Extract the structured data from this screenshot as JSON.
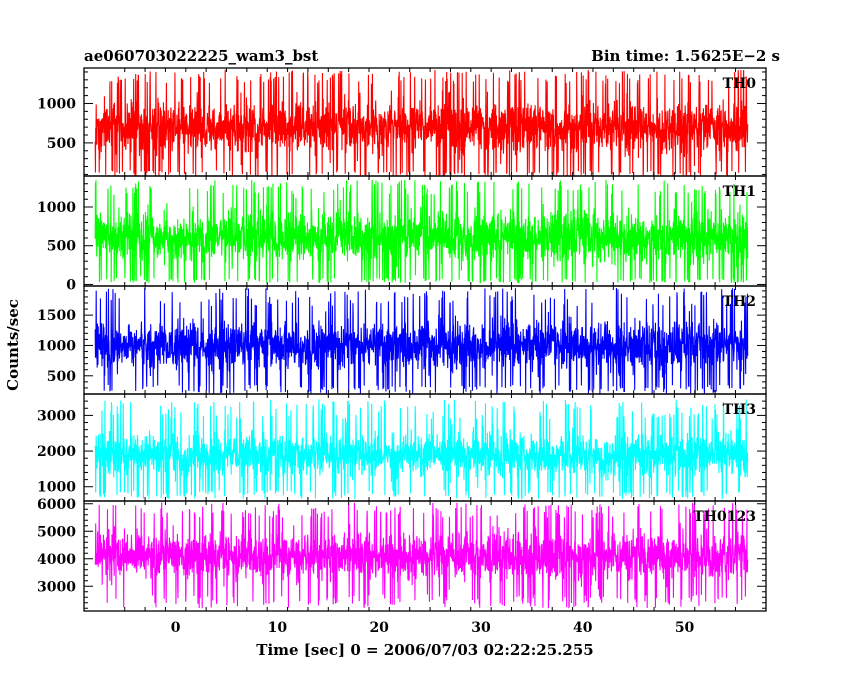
{
  "header": {
    "left_title": "ae060703022225_wam3_bst",
    "right_title": "Bin time: 1.5625E−2 s"
  },
  "chart_data": {
    "type": "line",
    "title": "ae060703022225_wam3_bst",
    "subtitle": "Bin time: 1.5625E−2 s",
    "xlabel": "Time [sec] 0 = 2006/07/03 02:22:25.255",
    "ylabel": "Counts/sec",
    "xlim": [
      -9,
      58
    ],
    "x_data_range": [
      -7.9,
      56.2
    ],
    "x_ticks": [
      "0",
      "10",
      "20",
      "30",
      "40",
      "50"
    ],
    "x_tick_values": [
      0,
      10,
      20,
      30,
      40,
      50
    ],
    "grid": false,
    "panels": [
      {
        "name": "TH0",
        "color": "#ff0000",
        "ylim": [
          80,
          1450
        ],
        "y_ticks": [
          "500",
          "1000"
        ],
        "y_tick_values": [
          500,
          1000
        ],
        "typical_range": [
          150,
          1250
        ],
        "extreme_range": [
          60,
          1430
        ]
      },
      {
        "name": "TH1",
        "color": "#00ff00",
        "ylim": [
          -20,
          1400
        ],
        "y_ticks": [
          "0",
          "500",
          "1000"
        ],
        "y_tick_values": [
          0,
          500,
          1000
        ],
        "typical_range": [
          80,
          1150
        ],
        "extreme_range": [
          20,
          1350
        ]
      },
      {
        "name": "TH2",
        "color": "#0000ff",
        "ylim": [
          200,
          1980
        ],
        "y_ticks": [
          "500",
          "1000",
          "1500"
        ],
        "y_tick_values": [
          500,
          1000,
          1500
        ],
        "typical_range": [
          350,
          1650
        ],
        "extreme_range": [
          200,
          1950
        ]
      },
      {
        "name": "TH3",
        "color": "#00ffff",
        "ylim": [
          600,
          3600
        ],
        "y_ticks": [
          "1000",
          "2000",
          "3000"
        ],
        "y_tick_values": [
          1000,
          2000,
          3000
        ],
        "typical_range": [
          900,
          2900
        ],
        "extreme_range": [
          650,
          3450
        ]
      },
      {
        "name": "TH0123",
        "color": "#ff00ff",
        "ylim": [
          2100,
          6100
        ],
        "y_ticks": [
          "3000",
          "4000",
          "5000",
          "6000"
        ],
        "y_tick_values": [
          3000,
          4000,
          5000,
          6000
        ],
        "typical_range": [
          2700,
          5500
        ],
        "extreme_range": [
          2200,
          6050
        ]
      }
    ]
  }
}
